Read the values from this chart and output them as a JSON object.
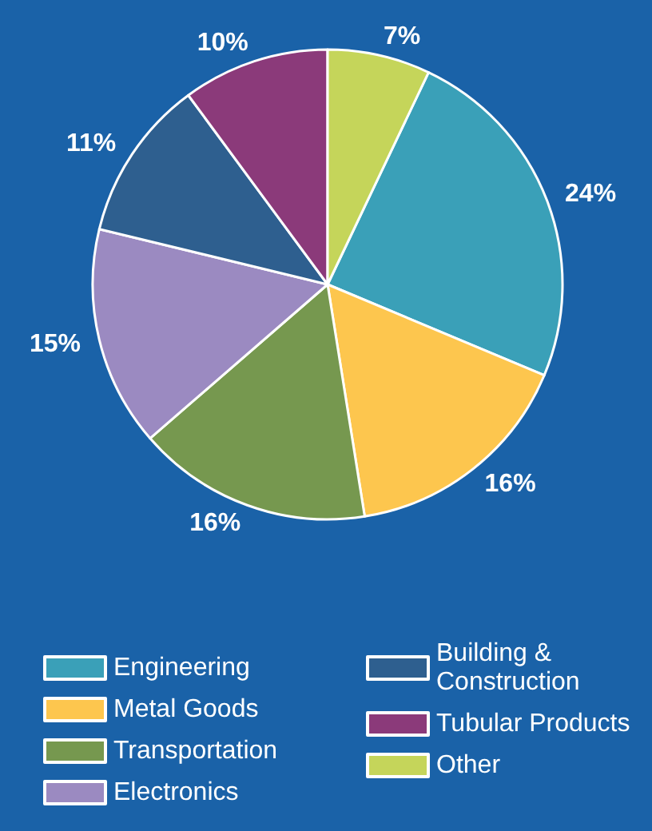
{
  "chart_data": {
    "type": "pie",
    "categories": [
      "Engineering",
      "Metal Goods",
      "Transportation",
      "Electronics",
      "Building & Construction",
      "Tubular Products",
      "Other"
    ],
    "values": [
      24,
      16,
      16,
      15,
      11,
      10,
      7
    ],
    "value_labels": [
      "24%",
      "16%",
      "16%",
      "15%",
      "11%",
      "10%",
      "7%"
    ],
    "colors": [
      "#3aa0b8",
      "#fdc64e",
      "#76984f",
      "#9b8ac1",
      "#2e5f8f",
      "#8b3a7a",
      "#c5d55a"
    ],
    "legend": "bottom"
  }
}
